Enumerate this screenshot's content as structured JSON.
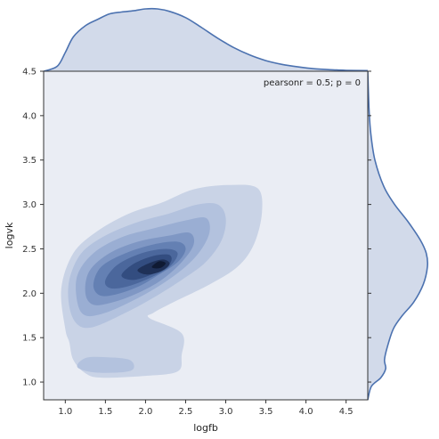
{
  "chart_data": {
    "type": "kde-jointplot",
    "xlabel": "logfb",
    "ylabel": "logvk",
    "xlim": [
      0.73,
      4.77
    ],
    "ylim": [
      0.8,
      4.5
    ],
    "xticks": [
      "1.0",
      "1.5",
      "2.0",
      "2.5",
      "3.0",
      "3.5",
      "4.0",
      "4.5"
    ],
    "yticks": [
      "1.0",
      "1.5",
      "2.0",
      "2.5",
      "3.0",
      "3.5",
      "4.0",
      "4.5"
    ],
    "annotation": "pearsonr = 0.5; p = 0",
    "grid": false,
    "colors": {
      "background": "#eaedf4",
      "line": "#4c72b0",
      "marginal_fill": "#d2daea",
      "levels": [
        "#c9d3e6",
        "#b3c2de",
        "#9aaed3",
        "#7f97c4",
        "#6480b3",
        "#4b679c",
        "#334d80",
        "#1f3158",
        "#0f1a33"
      ]
    },
    "marginal_x": {
      "x": [
        0.73,
        0.9,
        1.0,
        1.1,
        1.25,
        1.4,
        1.55,
        1.7,
        1.85,
        2.0,
        2.15,
        2.3,
        2.5,
        2.7,
        2.9,
        3.1,
        3.3,
        3.5,
        3.7,
        3.9,
        4.1,
        4.3,
        4.5,
        4.77
      ],
      "density": [
        0.0,
        0.08,
        0.3,
        0.55,
        0.73,
        0.83,
        0.92,
        0.95,
        0.97,
        1.0,
        1.0,
        0.96,
        0.86,
        0.7,
        0.53,
        0.38,
        0.26,
        0.17,
        0.11,
        0.07,
        0.04,
        0.025,
        0.015,
        0.01
      ]
    },
    "marginal_y": {
      "y": [
        0.8,
        0.95,
        1.05,
        1.15,
        1.25,
        1.4,
        1.6,
        1.75,
        1.9,
        2.1,
        2.3,
        2.45,
        2.6,
        2.8,
        3.0,
        3.2,
        3.5,
        3.8,
        4.1,
        4.5
      ],
      "density": [
        0.0,
        0.06,
        0.22,
        0.3,
        0.28,
        0.33,
        0.43,
        0.58,
        0.77,
        0.93,
        1.0,
        0.98,
        0.88,
        0.68,
        0.45,
        0.27,
        0.12,
        0.05,
        0.02,
        0.0
      ]
    },
    "contours": [
      {
        "level": 1,
        "polygons": [
          [
            [
              1.0,
              1.6
            ],
            [
              0.95,
              2.05
            ],
            [
              1.1,
              2.45
            ],
            [
              1.4,
              2.7
            ],
            [
              1.8,
              2.9
            ],
            [
              2.2,
              3.02
            ],
            [
              2.6,
              3.17
            ],
            [
              3.05,
              3.22
            ],
            [
              3.4,
              3.18
            ],
            [
              3.45,
              2.9
            ],
            [
              3.35,
              2.55
            ],
            [
              3.15,
              2.3
            ],
            [
              2.8,
              2.1
            ],
            [
              2.35,
              1.9
            ],
            [
              2.1,
              1.78
            ],
            [
              2.05,
              1.72
            ],
            [
              2.45,
              1.55
            ],
            [
              2.45,
              1.3
            ],
            [
              2.4,
              1.12
            ],
            [
              2.0,
              1.07
            ],
            [
              1.45,
              1.05
            ],
            [
              1.25,
              1.1
            ],
            [
              1.1,
              1.25
            ],
            [
              1.05,
              1.45
            ]
          ]
        ]
      },
      {
        "level": 2,
        "polygons": [
          [
            [
              1.05,
              1.85
            ],
            [
              1.05,
              2.15
            ],
            [
              1.2,
              2.45
            ],
            [
              1.5,
              2.65
            ],
            [
              1.9,
              2.8
            ],
            [
              2.3,
              2.9
            ],
            [
              2.65,
              3.0
            ],
            [
              2.9,
              3.0
            ],
            [
              3.0,
              2.85
            ],
            [
              2.95,
              2.6
            ],
            [
              2.75,
              2.35
            ],
            [
              2.45,
              2.15
            ],
            [
              2.1,
              1.95
            ],
            [
              1.75,
              1.78
            ],
            [
              1.35,
              1.62
            ],
            [
              1.15,
              1.65
            ]
          ],
          [
            [
              1.15,
              1.17
            ],
            [
              1.35,
              1.11
            ],
            [
              1.7,
              1.11
            ],
            [
              1.85,
              1.15
            ],
            [
              1.8,
              1.25
            ],
            [
              1.5,
              1.28
            ],
            [
              1.25,
              1.27
            ]
          ]
        ]
      },
      {
        "level": 3,
        "polygons": [
          [
            [
              1.15,
              1.9
            ],
            [
              1.15,
              2.2
            ],
            [
              1.35,
              2.45
            ],
            [
              1.7,
              2.63
            ],
            [
              2.1,
              2.73
            ],
            [
              2.5,
              2.82
            ],
            [
              2.75,
              2.85
            ],
            [
              2.8,
              2.7
            ],
            [
              2.7,
              2.5
            ],
            [
              2.5,
              2.3
            ],
            [
              2.2,
              2.1
            ],
            [
              1.85,
              1.92
            ],
            [
              1.5,
              1.78
            ],
            [
              1.25,
              1.75
            ]
          ]
        ]
      },
      {
        "level": 4,
        "polygons": [
          [
            [
              1.25,
              2.0
            ],
            [
              1.3,
              2.25
            ],
            [
              1.55,
              2.45
            ],
            [
              1.9,
              2.58
            ],
            [
              2.3,
              2.65
            ],
            [
              2.55,
              2.68
            ],
            [
              2.6,
              2.55
            ],
            [
              2.45,
              2.35
            ],
            [
              2.2,
              2.15
            ],
            [
              1.9,
              2.0
            ],
            [
              1.6,
              1.9
            ],
            [
              1.35,
              1.87
            ]
          ]
        ]
      },
      {
        "level": 5,
        "polygons": [
          [
            [
              1.35,
              2.1
            ],
            [
              1.45,
              2.3
            ],
            [
              1.75,
              2.45
            ],
            [
              2.1,
              2.55
            ],
            [
              2.4,
              2.58
            ],
            [
              2.5,
              2.5
            ],
            [
              2.4,
              2.35
            ],
            [
              2.15,
              2.2
            ],
            [
              1.9,
              2.07
            ],
            [
              1.6,
              1.98
            ],
            [
              1.42,
              1.98
            ]
          ]
        ]
      },
      {
        "level": 6,
        "polygons": [
          [
            [
              1.5,
              2.15
            ],
            [
              1.65,
              2.32
            ],
            [
              1.95,
              2.45
            ],
            [
              2.25,
              2.5
            ],
            [
              2.4,
              2.45
            ],
            [
              2.3,
              2.3
            ],
            [
              2.05,
              2.17
            ],
            [
              1.75,
              2.07
            ],
            [
              1.55,
              2.06
            ]
          ]
        ]
      },
      {
        "level": 7,
        "polygons": [
          [
            [
              1.7,
              2.2
            ],
            [
              1.85,
              2.33
            ],
            [
              2.1,
              2.42
            ],
            [
              2.3,
              2.43
            ],
            [
              2.3,
              2.33
            ],
            [
              2.1,
              2.22
            ],
            [
              1.85,
              2.15
            ]
          ]
        ]
      },
      {
        "level": 8,
        "polygons": [
          [
            [
              1.9,
              2.26
            ],
            [
              2.05,
              2.34
            ],
            [
              2.22,
              2.38
            ],
            [
              2.3,
              2.33
            ],
            [
              2.2,
              2.25
            ],
            [
              2.02,
              2.21
            ]
          ]
        ]
      },
      {
        "level": 9,
        "polygons": [
          [
            [
              2.08,
              2.3
            ],
            [
              2.17,
              2.36
            ],
            [
              2.25,
              2.34
            ],
            [
              2.2,
              2.29
            ],
            [
              2.12,
              2.28
            ]
          ]
        ]
      }
    ]
  }
}
